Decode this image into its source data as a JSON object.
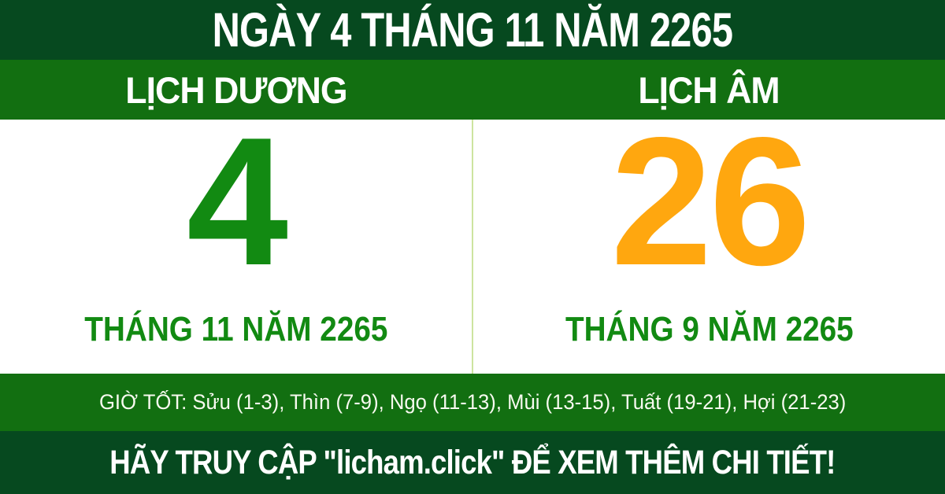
{
  "header": {
    "title": "NGÀY 4 THÁNG 11 NĂM 2265"
  },
  "calendar": {
    "solar": {
      "label": "LỊCH DƯƠNG",
      "day": "4",
      "month_year": "THÁNG 11 NĂM 2265",
      "day_color": "#128a12"
    },
    "lunar": {
      "label": "LỊCH ÂM",
      "day": "26",
      "month_year": "THÁNG 9 NĂM 2265",
      "day_color": "#ffa70f"
    }
  },
  "good_hours": {
    "text": "GIỜ TỐT: Sửu (1-3), Thìn (7-9), Ngọ (11-13), Mùi (13-15), Tuất (19-21), Hợi (21-23)"
  },
  "footer": {
    "cta": "HÃY TRUY CẬP \"licham.click\" ĐỂ XEM THÊM CHI TIẾT!"
  },
  "colors": {
    "dark_green": "#06491f",
    "medium_green": "#126f11",
    "accent_green": "#128a12",
    "accent_orange": "#ffa70f",
    "divider_green": "#cde49f",
    "panel_white": "#ffffff",
    "text_white": "#ffffff"
  }
}
